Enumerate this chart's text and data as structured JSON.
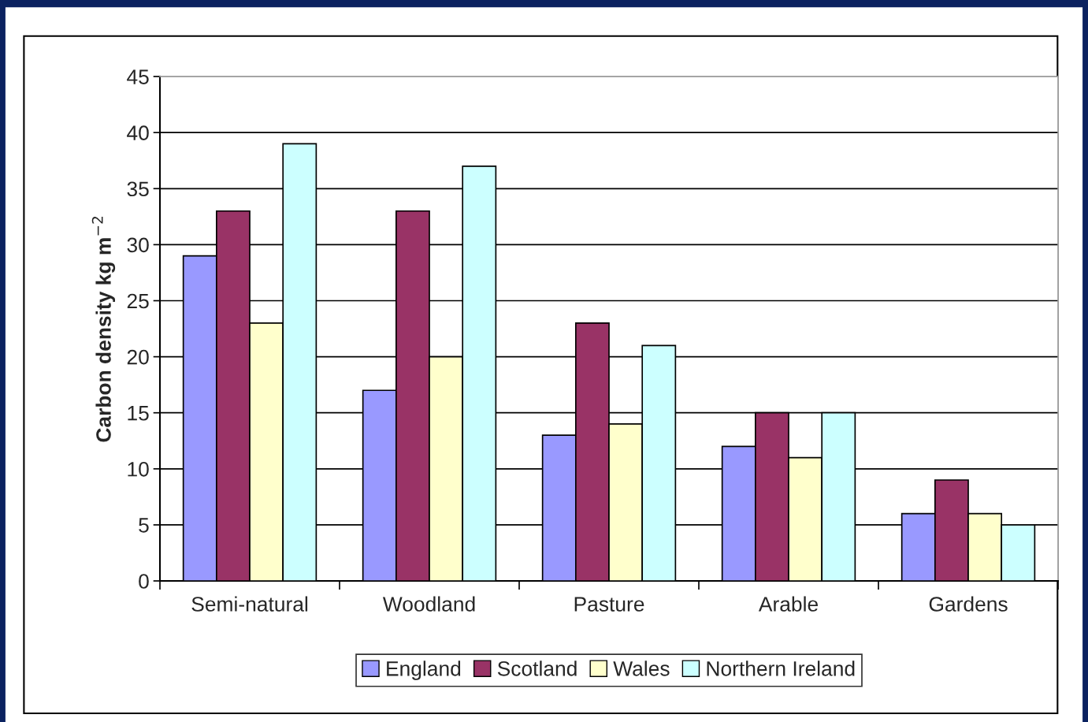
{
  "chart_data": {
    "type": "bar",
    "categories": [
      "Semi-natural",
      "Woodland",
      "Pasture",
      "Arable",
      "Gardens"
    ],
    "ylabel": "Carbon density kg m$^{−2}$",
    "series": [
      {
        "name": "England",
        "color": "#9999ff",
        "values": [
          29,
          17,
          13,
          12,
          6
        ]
      },
      {
        "name": "Scotland",
        "color": "#993366",
        "values": [
          33,
          33,
          23,
          15,
          9
        ]
      },
      {
        "name": "Wales",
        "color": "#ffffcc",
        "values": [
          23,
          20,
          14,
          11,
          6
        ]
      },
      {
        "name": "Northern Ireland",
        "color": "#ccffff",
        "values": [
          39,
          37,
          21,
          15,
          5
        ]
      }
    ],
    "ylim": [
      0,
      45
    ],
    "yticks": [
      0,
      5,
      10,
      15,
      20,
      25,
      30,
      35,
      40,
      45
    ],
    "grid": "y",
    "legend": "bottom"
  }
}
